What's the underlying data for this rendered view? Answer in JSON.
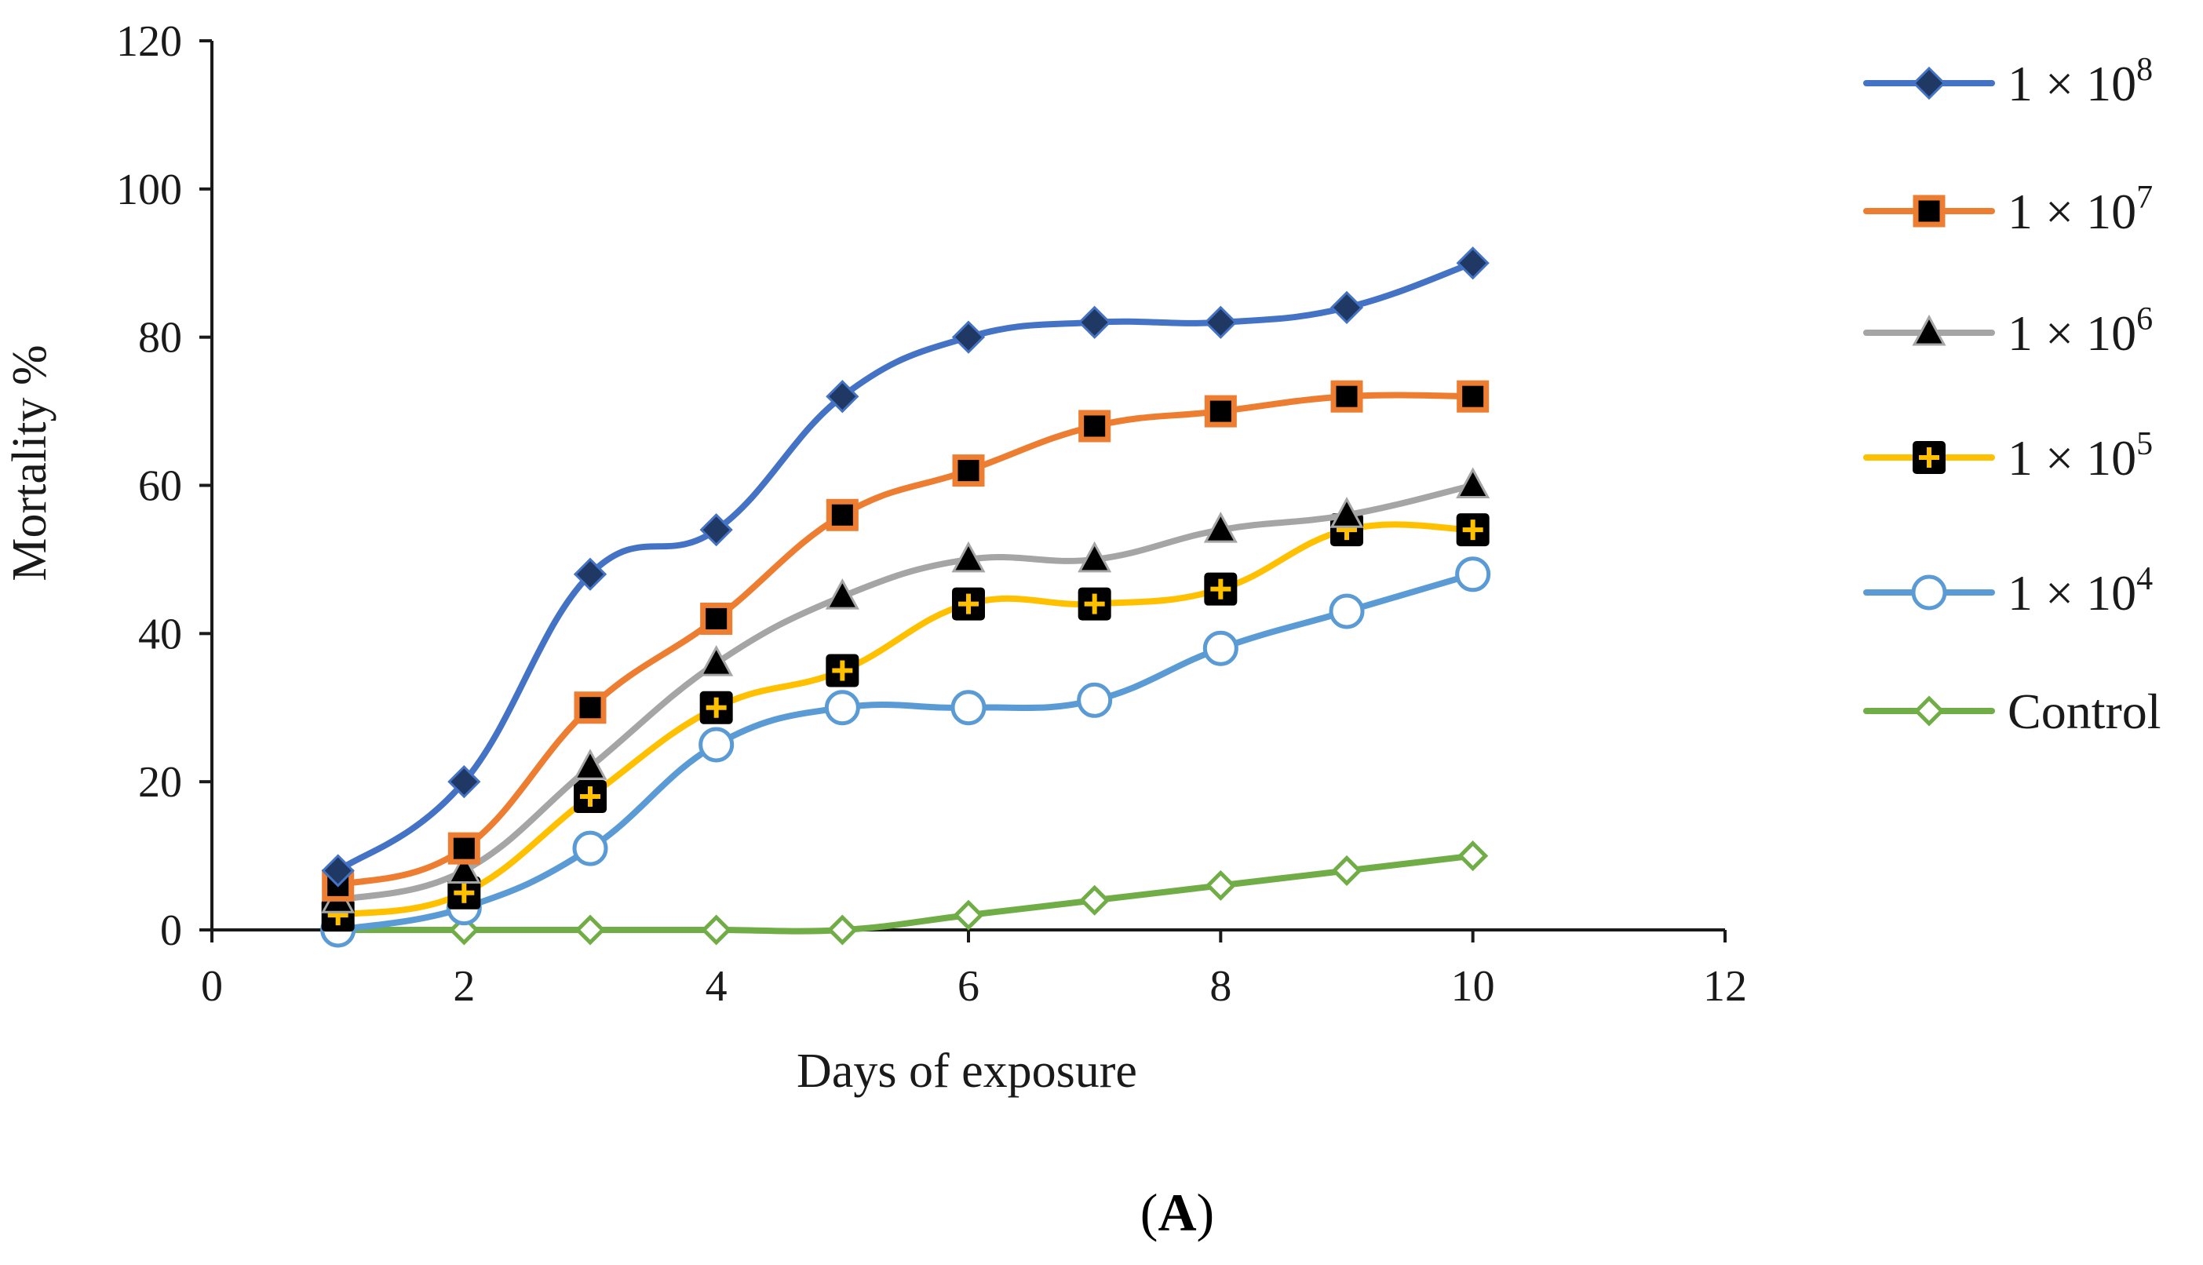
{
  "chart_data": {
    "type": "line",
    "title": "",
    "xlabel": "Days of exposure",
    "ylabel": "Mortality %",
    "xlim": [
      0,
      12
    ],
    "ylim": [
      0,
      120
    ],
    "x_ticks": [
      0,
      2,
      4,
      6,
      8,
      10,
      12
    ],
    "y_ticks": [
      0,
      20,
      40,
      60,
      80,
      100,
      120
    ],
    "grid": false,
    "legend_position": "right",
    "x": [
      1,
      2,
      3,
      4,
      5,
      6,
      7,
      8,
      9,
      10
    ],
    "series": [
      {
        "name": "1 × 10",
        "exponent": "8",
        "color": "#4472C4",
        "marker": "diamond-filled",
        "marker_fill": "#1F3864",
        "values": [
          8,
          20,
          48,
          54,
          72,
          80,
          82,
          82,
          84,
          90
        ]
      },
      {
        "name": "1 × 10",
        "exponent": "7",
        "color": "#ED7D31",
        "marker": "square-filled",
        "marker_fill": "#000000",
        "values": [
          6,
          11,
          30,
          42,
          56,
          62,
          68,
          70,
          72,
          72
        ]
      },
      {
        "name": "1 × 10",
        "exponent": "6",
        "color": "#A5A5A5",
        "marker": "triangle-filled",
        "marker_fill": "#000000",
        "values": [
          4,
          8,
          22,
          36,
          45,
          50,
          50,
          54,
          56,
          60
        ]
      },
      {
        "name": "1 × 10",
        "exponent": "5",
        "color": "#FFC000",
        "marker": "plus-square",
        "marker_fill": "#000000",
        "values": [
          2,
          5,
          18,
          30,
          35,
          44,
          44,
          46,
          54,
          54
        ]
      },
      {
        "name": "1 × 10",
        "exponent": "4",
        "color": "#5B9BD5",
        "marker": "circle-open",
        "marker_fill": "#ffffff",
        "values": [
          0,
          3,
          11,
          25,
          30,
          30,
          31,
          38,
          43,
          48
        ]
      },
      {
        "name": "Control",
        "exponent": "",
        "color": "#70AD47",
        "marker": "diamond-open",
        "marker_fill": "#ffffff",
        "values": [
          0,
          0,
          0,
          0,
          0,
          2,
          4,
          6,
          8,
          10
        ]
      }
    ]
  },
  "figure_label": {
    "open": "(",
    "letter": "A",
    "close": ")"
  }
}
